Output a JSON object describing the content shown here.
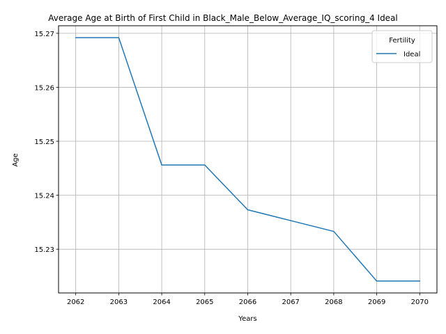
{
  "chart_data": {
    "type": "line",
    "title": "Average Age at Birth of First Child in Black_Male_Below_Average_IQ_scoring_4 Ideal",
    "xlabel": "Years",
    "ylabel": "Age",
    "x": [
      2062,
      2063,
      2064,
      2065,
      2066,
      2067,
      2068,
      2069,
      2070
    ],
    "series": [
      {
        "name": "Ideal",
        "color": "#1f77b4",
        "values": [
          15.2692,
          15.2692,
          15.2456,
          15.2456,
          15.2373,
          15.2353,
          15.2333,
          15.2241,
          15.2241
        ]
      }
    ],
    "xlim": [
      2061.6,
      2070.4
    ],
    "ylim": [
      15.2219,
      15.2714
    ],
    "xticks": [
      "2062",
      "2063",
      "2064",
      "2065",
      "2066",
      "2067",
      "2068",
      "2069",
      "2070"
    ],
    "yticks": [
      "15.23",
      "15.24",
      "15.25",
      "15.26",
      "15.27"
    ],
    "grid": true,
    "legend": {
      "title": "Fertility",
      "position": "top-right"
    }
  }
}
